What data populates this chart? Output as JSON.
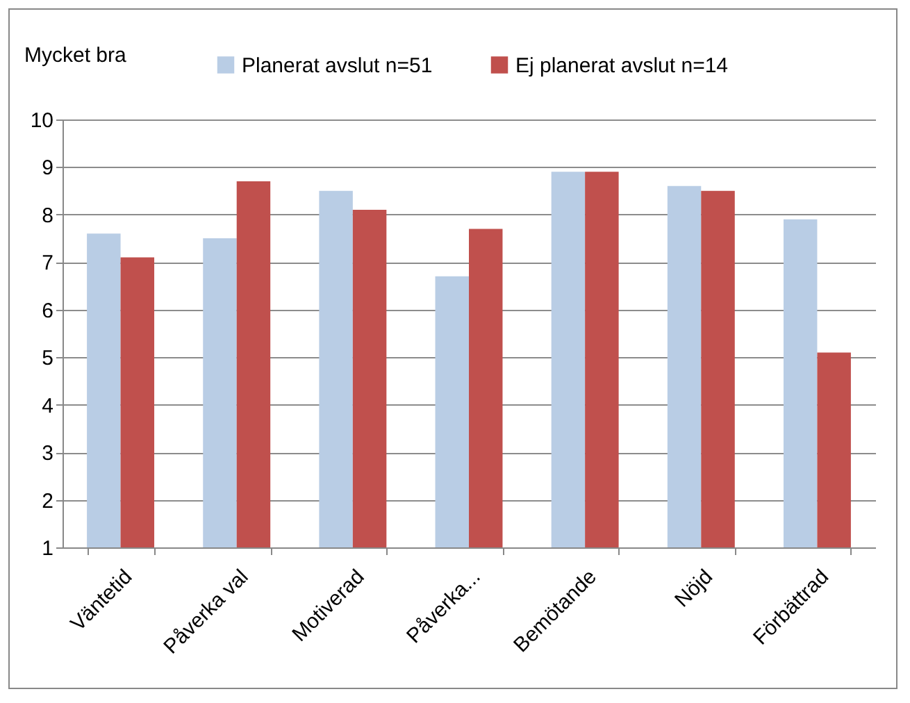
{
  "chart_data": {
    "type": "bar",
    "ylabel": "Mycket bra",
    "categories": [
      "Väntetid",
      "Påverka val",
      "Motiverad",
      "Påverka...",
      "Bemötande",
      "Nöjd",
      "Förbättrad"
    ],
    "series": [
      {
        "name": "Planerat avslut n=51",
        "color": "#b9cde5",
        "values": [
          7.6,
          7.5,
          8.5,
          6.7,
          8.9,
          8.6,
          7.9
        ]
      },
      {
        "name": "Ej planerat avslut n=14",
        "color": "#c0504d",
        "values": [
          7.1,
          8.7,
          8.1,
          7.7,
          8.9,
          8.5,
          5.1
        ]
      }
    ],
    "ylim": [
      1,
      10
    ],
    "yticks": [
      1,
      2,
      3,
      4,
      5,
      6,
      7,
      8,
      9,
      10
    ],
    "grid": "y",
    "legend": "top"
  }
}
